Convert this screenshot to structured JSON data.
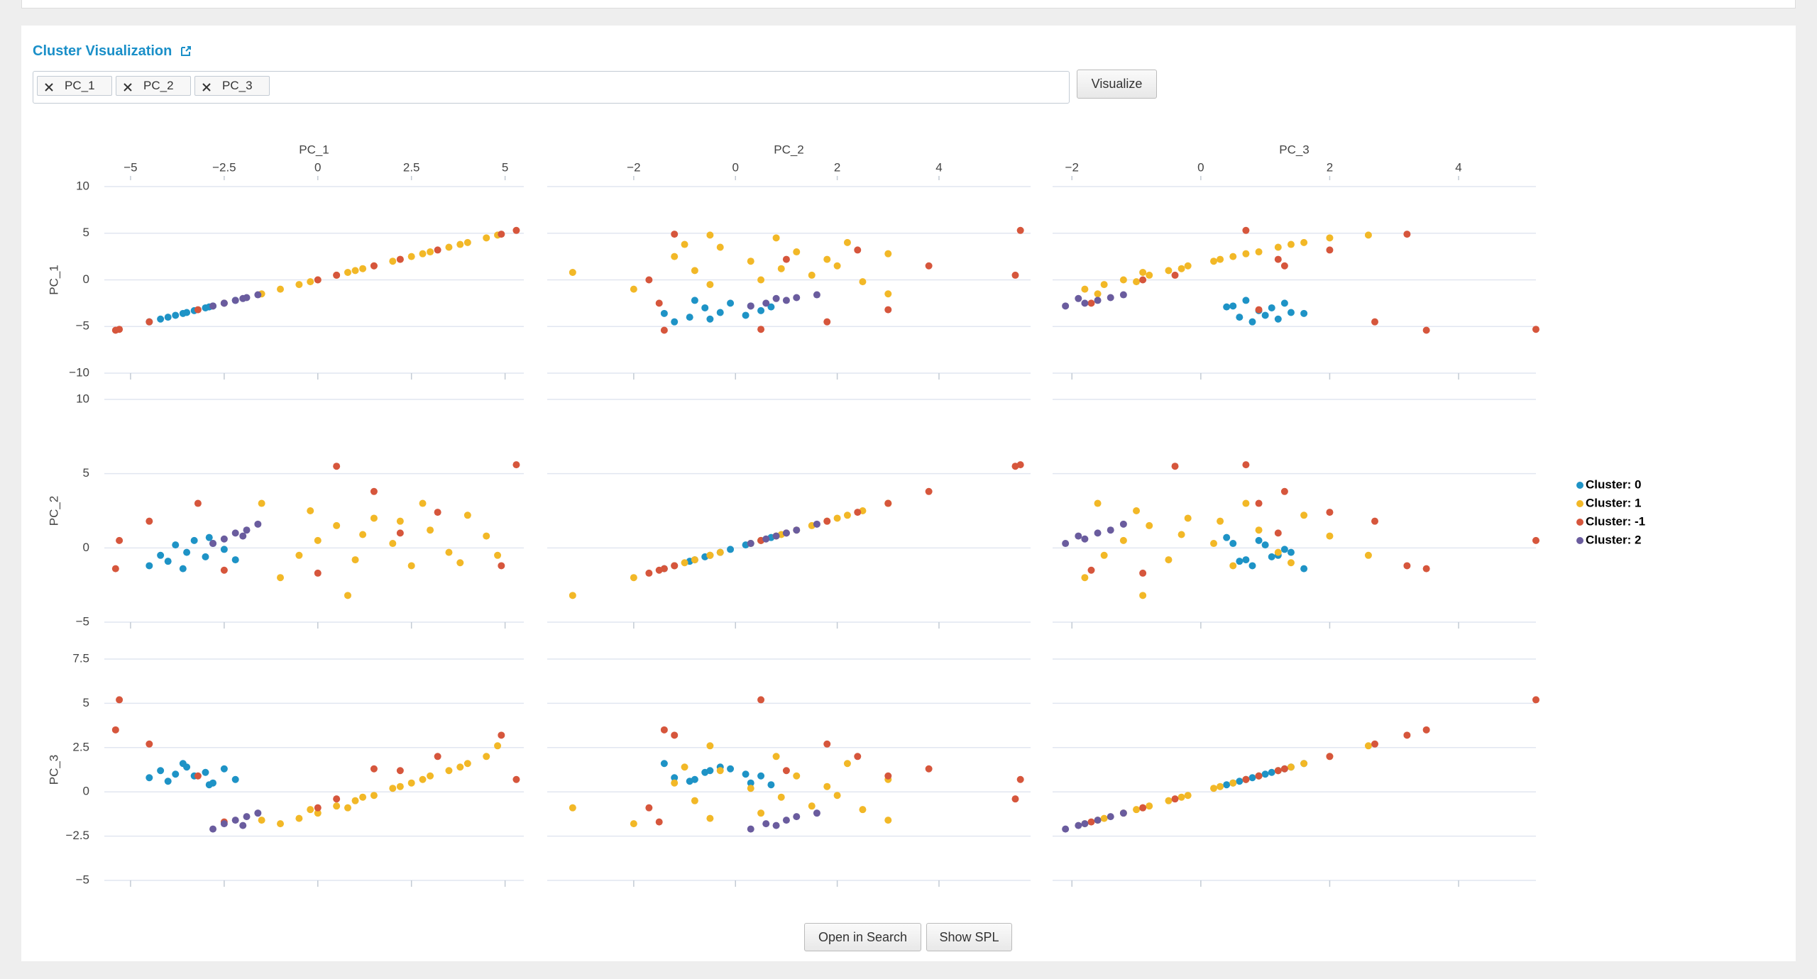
{
  "header": {
    "title": "Cluster Visualization",
    "fields": [
      "PC_1",
      "PC_2",
      "PC_3"
    ],
    "button": "Visualize"
  },
  "chart_data": {
    "type": "scatter_matrix",
    "grid": true,
    "legend": "right",
    "dimensions": [
      {
        "name": "PC_1",
        "xlim": [
          -5.7,
          5.5
        ],
        "xticks": [
          {
            "value": -5,
            "label": "−5"
          },
          {
            "value": -2.5,
            "label": "−2.5"
          },
          0,
          2.5,
          5
        ],
        "ylim": [
          -10,
          10
        ],
        "yticks": [
          10,
          5,
          0,
          {
            "value": -5,
            "label": "−5"
          },
          {
            "value": -10,
            "label": "−10"
          }
        ]
      },
      {
        "name": "PC_2",
        "xlim": [
          -3.7,
          5.8
        ],
        "xticks": [
          {
            "value": -2,
            "label": "−2"
          },
          0,
          2,
          4
        ],
        "ylim": [
          -5,
          10
        ],
        "yticks": [
          10,
          5,
          0,
          {
            "value": -5,
            "label": "−5"
          }
        ]
      },
      {
        "name": "PC_3",
        "xlim": [
          -2.3,
          5.2
        ],
        "xticks": [
          {
            "value": -2,
            "label": "−2"
          },
          0,
          2,
          4
        ],
        "ylim": [
          -5,
          7.5
        ],
        "yticks": [
          7.5,
          5,
          2.5,
          0,
          {
            "value": -2.5,
            "label": "−2.5"
          },
          {
            "value": -5,
            "label": "−5"
          }
        ]
      }
    ],
    "series": [
      {
        "name": "Cluster: 0",
        "color": "#1e93c6",
        "values": [
          [
            -4.5,
            -4.2,
            -4,
            -3.8,
            -3.5,
            -3.3,
            -3,
            -2.8,
            -2.5,
            -2.2,
            -3.6,
            -2.9
          ],
          [
            -1.2,
            -0.5,
            -0.9,
            0.2,
            -0.3,
            0.5,
            -0.6,
            0.3,
            -0.1,
            -0.8,
            -1.4,
            0.7
          ],
          [
            0.8,
            1.2,
            0.6,
            1,
            1.4,
            0.9,
            1.1,
            0.5,
            1.3,
            0.7,
            1.6,
            0.4
          ]
        ]
      },
      {
        "name": "Cluster: 1",
        "color": "#f2b827",
        "values": [
          [
            -1,
            -0.5,
            0,
            0.5,
            1,
            1.5,
            2,
            2.5,
            3,
            3.5,
            4,
            4.5,
            -1.5,
            0.8,
            2.2,
            3.8,
            1.2,
            -0.2,
            2.8,
            4.8
          ],
          [
            -2,
            -0.5,
            0.5,
            1.5,
            -0.8,
            2,
            0.3,
            -1.2,
            1.2,
            -0.3,
            2.2,
            0.8,
            3,
            -3.2,
            1.8,
            -1,
            0.9,
            2.5,
            3,
            -0.5
          ],
          [
            -1.8,
            -1.5,
            -1.2,
            -0.8,
            -0.5,
            -0.2,
            0.2,
            0.5,
            0.9,
            1.2,
            1.6,
            2,
            -1.6,
            -0.9,
            0.3,
            1.4,
            -0.3,
            -1,
            0.7,
            2.6
          ]
        ]
      },
      {
        "name": "Cluster: -1",
        "color": "#d6563c",
        "values": [
          [
            -5.4,
            -5.3,
            5.3,
            4.9,
            0.5,
            2.2,
            -3.2,
            1.5,
            -2.5,
            3.2,
            -4.5,
            0
          ],
          [
            -1.4,
            0.5,
            5.6,
            -1.2,
            5.5,
            1,
            3,
            3.8,
            -1.5,
            2.4,
            1.8,
            -1.7
          ],
          [
            3.5,
            5.2,
            0.7,
            3.2,
            -0.4,
            1.2,
            0.9,
            1.3,
            -1.7,
            2,
            2.7,
            -0.9
          ]
        ]
      },
      {
        "name": "Cluster: 2",
        "color": "#6a5c9e",
        "values": [
          [
            -2.8,
            -2.5,
            -2.2,
            -1.9,
            -1.6,
            -2
          ],
          [
            0.3,
            0.6,
            1,
            1.2,
            1.6,
            0.8
          ],
          [
            -2.1,
            -1.8,
            -1.6,
            -1.4,
            -1.2,
            -1.9
          ]
        ]
      }
    ]
  },
  "footer": {
    "buttons": [
      "Open in Search",
      "Show SPL"
    ]
  }
}
